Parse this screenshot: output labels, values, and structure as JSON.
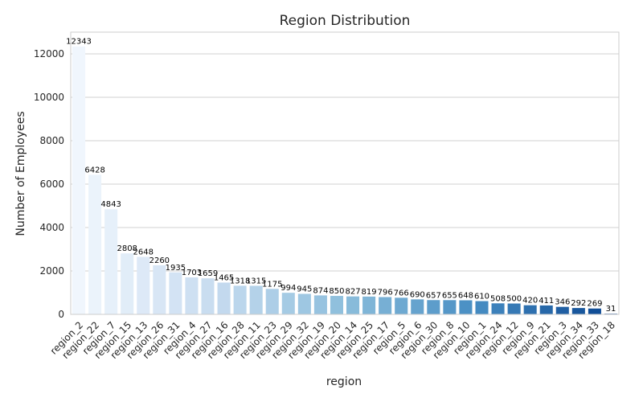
{
  "chart_data": {
    "type": "bar",
    "title": "Region Distribution",
    "xlabel": "region",
    "ylabel": "Number of Employees",
    "ylim": [
      0,
      13000
    ],
    "yticks": [
      0,
      2000,
      4000,
      6000,
      8000,
      10000,
      12000
    ],
    "grid": true,
    "palette": "Blues",
    "categories": [
      "region_2",
      "region_22",
      "region_7",
      "region_15",
      "region_13",
      "region_26",
      "region_31",
      "region_4",
      "region_27",
      "region_16",
      "region_28",
      "region_11",
      "region_23",
      "region_29",
      "region_32",
      "region_19",
      "region_20",
      "region_14",
      "region_25",
      "region_17",
      "region_5",
      "region_6",
      "region_30",
      "region_8",
      "region_10",
      "region_1",
      "region_24",
      "region_12",
      "region_9",
      "region_21",
      "region_3",
      "region_34",
      "region_33",
      "region_18"
    ],
    "values": [
      12343,
      6428,
      4843,
      2808,
      2648,
      2260,
      1935,
      1703,
      1659,
      1465,
      1318,
      1315,
      1175,
      994,
      945,
      874,
      850,
      827,
      819,
      796,
      766,
      690,
      657,
      655,
      648,
      610,
      508,
      500,
      420,
      411,
      346,
      292,
      269,
      31
    ]
  }
}
